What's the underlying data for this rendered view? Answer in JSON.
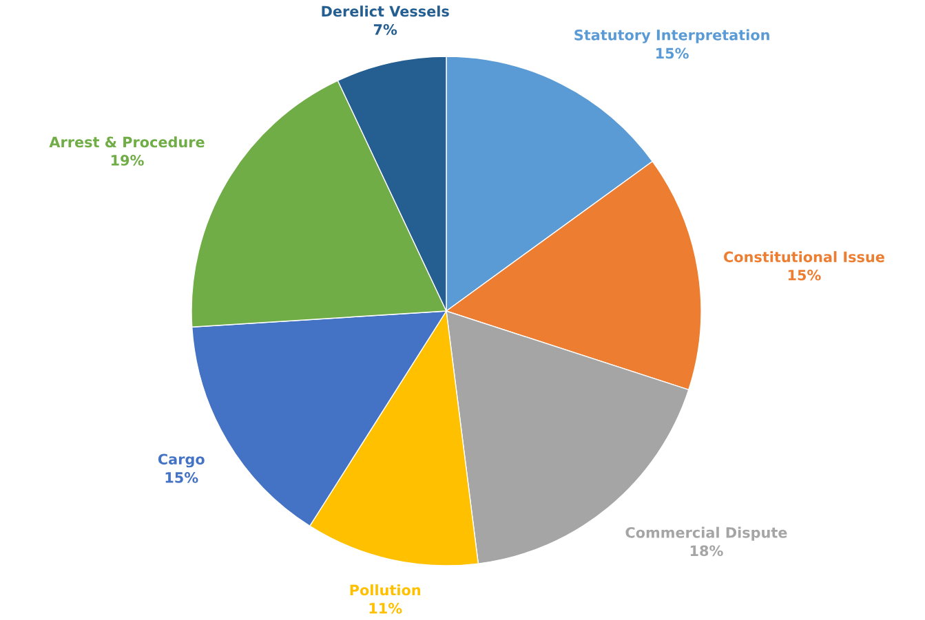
{
  "chart_data": {
    "type": "pie",
    "categories": [
      "Statutory Interpretation",
      "Constitutional Issue",
      "Commercial Dispute",
      "Pollution",
      "Cargo",
      "Arrest & Procedure",
      "Derelict Vessels"
    ],
    "values": [
      15,
      15,
      18,
      11,
      15,
      19,
      7
    ],
    "value_labels": [
      "15%",
      "15%",
      "18%",
      "11%",
      "15%",
      "19%",
      "7%"
    ],
    "colors": [
      "#5b9bd5",
      "#ed7d31",
      "#a5a5a5",
      "#ffc000",
      "#4472c4",
      "#70ad47",
      "#255e91"
    ],
    "legend": false
  }
}
